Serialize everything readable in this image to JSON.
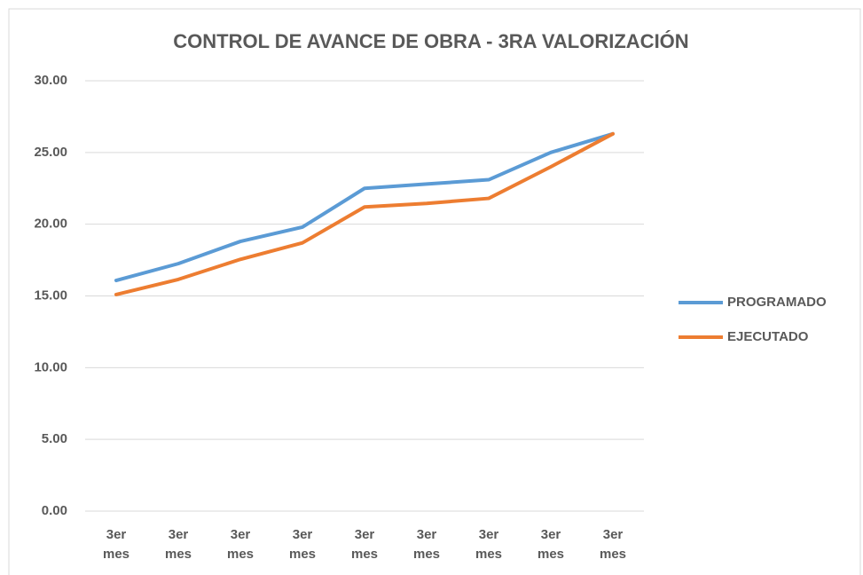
{
  "chart_data": {
    "type": "line",
    "title": "CONTROL DE AVANCE DE OBRA - 3RA VALORIZACIÓN",
    "categories": [
      "3er mes",
      "3er mes",
      "3er mes",
      "3er mes",
      "3er mes",
      "3er mes",
      "3er mes",
      "3er mes",
      "3er mes"
    ],
    "series": [
      {
        "name": "PROGRAMADO",
        "color": "#5b9bd5",
        "values": [
          16.08,
          17.25,
          18.8,
          19.8,
          22.5,
          22.8,
          23.1,
          25.0,
          26.3
        ]
      },
      {
        "name": "EJECUTADO",
        "color": "#ed7d31",
        "values": [
          15.1,
          16.15,
          17.55,
          18.7,
          21.2,
          21.45,
          21.8,
          24.0,
          26.3
        ]
      }
    ],
    "ylim": [
      0,
      30
    ],
    "yticks": [
      {
        "value": 0,
        "label": "0.00"
      },
      {
        "value": 5,
        "label": "5.00"
      },
      {
        "value": 10,
        "label": "10.00"
      },
      {
        "value": 15,
        "label": "15.00"
      },
      {
        "value": 20,
        "label": "20.00"
      },
      {
        "value": 25,
        "label": "25.00"
      },
      {
        "value": 30,
        "label": "30.00"
      }
    ],
    "grid": true,
    "legend": "right"
  }
}
